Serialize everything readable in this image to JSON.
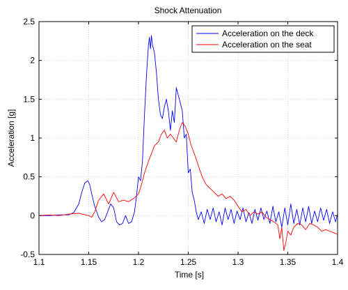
{
  "chart_data": {
    "type": "line",
    "title": "Shock Attenuation",
    "xlabel": "Time [s]",
    "ylabel": "Acceleration [g]",
    "xlim": [
      1.1,
      1.4
    ],
    "ylim": [
      -0.5,
      2.5
    ],
    "xticks": [
      1.1,
      1.15,
      1.2,
      1.25,
      1.3,
      1.35,
      1.4
    ],
    "xtick_labels": [
      "1.1",
      "1.15",
      "1.2",
      "1.25",
      "1.3",
      "1.35",
      "1.4"
    ],
    "yticks": [
      -0.5,
      0,
      0.5,
      1,
      1.5,
      2,
      2.5
    ],
    "ytick_labels": [
      "-0.5",
      "0",
      "0.5",
      "1",
      "1.5",
      "2",
      "2.5"
    ],
    "grid": true,
    "legend_position": "top-right",
    "series": [
      {
        "name": "Acceleration on the deck",
        "color": "#0000ff",
        "x": [
          1.1,
          1.11,
          1.12,
          1.13,
          1.135,
          1.14,
          1.143,
          1.146,
          1.149,
          1.151,
          1.153,
          1.156,
          1.16,
          1.163,
          1.166,
          1.169,
          1.172,
          1.175,
          1.178,
          1.181,
          1.184,
          1.187,
          1.19,
          1.193,
          1.196,
          1.198,
          1.2,
          1.202,
          1.204,
          1.206,
          1.208,
          1.21,
          1.211,
          1.212,
          1.213,
          1.214,
          1.216,
          1.218,
          1.22,
          1.222,
          1.224,
          1.226,
          1.228,
          1.23,
          1.232,
          1.234,
          1.236,
          1.238,
          1.24,
          1.242,
          1.244,
          1.246,
          1.248,
          1.25,
          1.252,
          1.254,
          1.256,
          1.258,
          1.26,
          1.263,
          1.266,
          1.269,
          1.272,
          1.275,
          1.278,
          1.281,
          1.284,
          1.287,
          1.29,
          1.293,
          1.296,
          1.299,
          1.302,
          1.305,
          1.308,
          1.311,
          1.314,
          1.317,
          1.32,
          1.323,
          1.326,
          1.329,
          1.332,
          1.335,
          1.338,
          1.341,
          1.344,
          1.347,
          1.35,
          1.353,
          1.356,
          1.359,
          1.362,
          1.365,
          1.368,
          1.371,
          1.374,
          1.377,
          1.38,
          1.383,
          1.386,
          1.389,
          1.392,
          1.395,
          1.398,
          1.4
        ],
        "y": [
          0.0,
          0.0,
          0.01,
          0.01,
          0.04,
          0.15,
          0.3,
          0.42,
          0.45,
          0.4,
          0.28,
          0.12,
          -0.02,
          -0.08,
          -0.05,
          0.05,
          0.15,
          0.1,
          -0.08,
          -0.12,
          -0.1,
          0.0,
          -0.1,
          -0.08,
          0.05,
          0.25,
          0.5,
          0.45,
          0.7,
          1.3,
          1.8,
          2.2,
          2.3,
          2.15,
          2.32,
          2.2,
          2.1,
          1.85,
          1.5,
          1.3,
          1.25,
          1.4,
          1.5,
          1.35,
          1.1,
          1.35,
          1.2,
          1.65,
          1.55,
          1.45,
          1.35,
          1.0,
          1.05,
          0.55,
          0.6,
          0.3,
          0.2,
          0.05,
          -0.05,
          0.05,
          -0.1,
          0.08,
          -0.05,
          0.1,
          -0.08,
          0.05,
          -0.12,
          0.1,
          -0.05,
          0.08,
          -0.1,
          0.06,
          -0.05,
          0.1,
          -0.08,
          0.04,
          -0.1,
          0.08,
          -0.06,
          0.1,
          -0.05,
          0.06,
          -0.1,
          0.12,
          -0.08,
          0.05,
          -0.15,
          0.1,
          -0.12,
          0.15,
          -0.1,
          0.08,
          -0.12,
          0.1,
          -0.08,
          0.12,
          -0.1,
          0.06,
          -0.08,
          0.1,
          -0.06,
          0.08,
          -0.1,
          0.05,
          -0.08,
          0.02
        ]
      },
      {
        "name": "Acceleration on the seat",
        "color": "#ff0000",
        "x": [
          1.1,
          1.11,
          1.12,
          1.13,
          1.14,
          1.15,
          1.153,
          1.156,
          1.16,
          1.165,
          1.17,
          1.175,
          1.18,
          1.185,
          1.19,
          1.195,
          1.2,
          1.203,
          1.206,
          1.21,
          1.213,
          1.216,
          1.22,
          1.223,
          1.226,
          1.229,
          1.232,
          1.235,
          1.238,
          1.241,
          1.244,
          1.247,
          1.25,
          1.253,
          1.256,
          1.26,
          1.264,
          1.268,
          1.272,
          1.276,
          1.28,
          1.284,
          1.288,
          1.292,
          1.296,
          1.3,
          1.304,
          1.308,
          1.312,
          1.316,
          1.32,
          1.324,
          1.328,
          1.332,
          1.336,
          1.34,
          1.342,
          1.344,
          1.346,
          1.348,
          1.35,
          1.353,
          1.356,
          1.36,
          1.364,
          1.368,
          1.372,
          1.376,
          1.38,
          1.384,
          1.388,
          1.392,
          1.396,
          1.4
        ],
        "y": [
          0.0,
          0.01,
          0.0,
          0.02,
          0.03,
          0.0,
          -0.02,
          0.05,
          0.2,
          0.28,
          0.15,
          0.3,
          0.18,
          0.2,
          0.18,
          0.22,
          0.28,
          0.4,
          0.55,
          0.7,
          0.8,
          0.9,
          0.95,
          1.05,
          1.1,
          1.0,
          1.05,
          1.0,
          0.95,
          1.1,
          1.2,
          1.15,
          1.05,
          0.9,
          0.8,
          0.65,
          0.5,
          0.4,
          0.35,
          0.3,
          0.25,
          0.28,
          0.22,
          0.25,
          0.2,
          0.12,
          0.05,
          0.08,
          0.0,
          0.05,
          0.02,
          0.05,
          -0.02,
          -0.05,
          -0.08,
          -0.12,
          -0.3,
          -0.15,
          -0.45,
          -0.35,
          -0.2,
          -0.25,
          -0.15,
          -0.1,
          -0.12,
          -0.18,
          -0.1,
          -0.12,
          -0.15,
          -0.2,
          -0.18,
          -0.2,
          -0.22,
          -0.24
        ]
      }
    ]
  }
}
